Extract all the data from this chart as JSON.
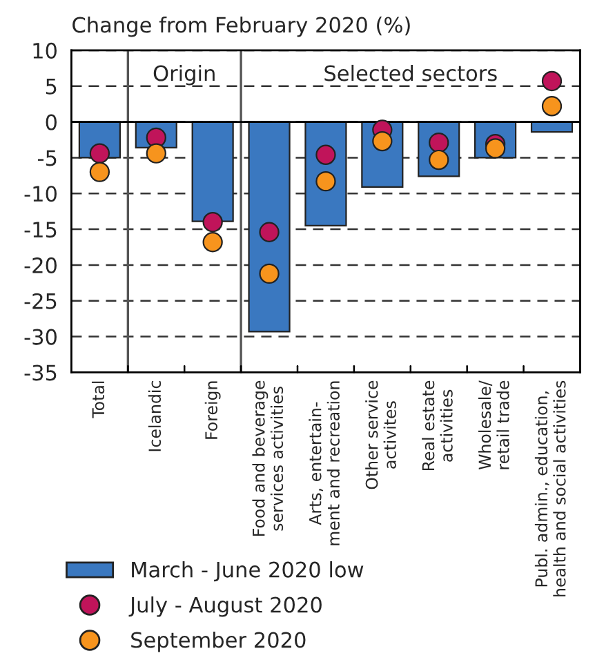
{
  "chart_data": {
    "type": "bar",
    "title": "Change from February 2020 (%)",
    "categories": [
      "Total",
      "Icelandic",
      "Foreign",
      "Food and beverage\nservices activities",
      "Arts, entertain-\nment and recreation",
      "Other service\nactivites",
      "Real estate\nactivities",
      "Wholesale/\nretail trade",
      "Publ. admin., education,\nhealth and social activities"
    ],
    "series": [
      {
        "name": "March - June 2020 low",
        "color": "#3a78c0",
        "values": [
          -5.0,
          -3.6,
          -13.9,
          -29.3,
          -14.5,
          -9.1,
          -7.6,
          -5.0,
          -1.4
        ]
      },
      {
        "name": "July - August 2020",
        "type": "scatter",
        "color": "#c0145a",
        "values": [
          -4.4,
          -2.2,
          -14.0,
          -15.4,
          -4.6,
          -1.1,
          -2.9,
          -3.1,
          5.7
        ]
      },
      {
        "name": "September 2020",
        "type": "scatter",
        "color": "#f7941d",
        "values": [
          -7.0,
          -4.4,
          -16.8,
          -21.2,
          -8.3,
          -2.7,
          -5.3,
          -3.7,
          2.2
        ]
      }
    ],
    "annotations": [
      "Origin",
      "Selected sectors"
    ],
    "ylim": [
      -35,
      10
    ],
    "yticks": [
      -35,
      -30,
      -25,
      -20,
      -15,
      -10,
      -5,
      0,
      5,
      10
    ],
    "grid": "y",
    "legend": "bottom",
    "marker": "circle"
  }
}
